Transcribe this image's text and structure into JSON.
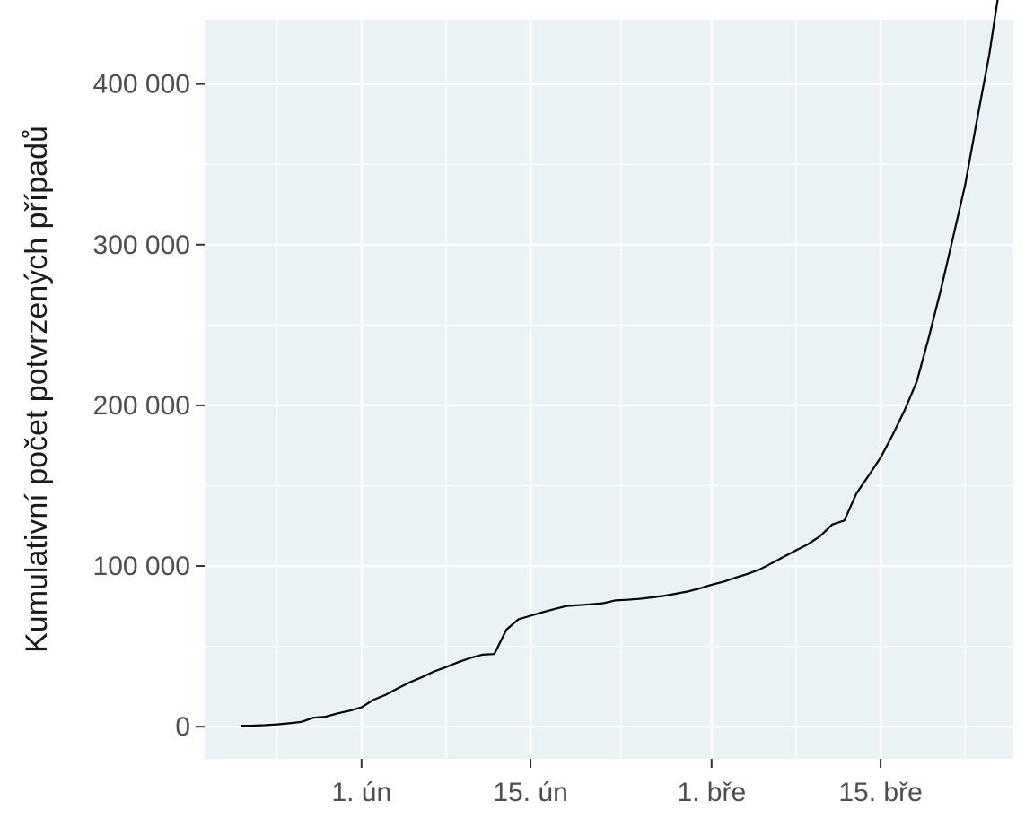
{
  "chart_data": {
    "type": "line",
    "title": "",
    "xlabel": "",
    "ylabel": "Kumulativní počet potvrzených případů",
    "background_color": "#ebf2f5",
    "grid_color": "#ffffff",
    "line_color": "#000000",
    "grid": true,
    "legend": "none",
    "xlim": [
      "2020-01-19",
      "2020-03-26"
    ],
    "ylim": [
      -20000,
      440000
    ],
    "x_ticks": [
      {
        "date": "2020-02-01",
        "label": "1. ún"
      },
      {
        "date": "2020-02-15",
        "label": "15. ún"
      },
      {
        "date": "2020-03-01",
        "label": "1. bře"
      },
      {
        "date": "2020-03-15",
        "label": "15. bře"
      }
    ],
    "y_ticks": [
      {
        "value": 0,
        "label": "0"
      },
      {
        "value": 100000,
        "label": "100 000"
      },
      {
        "value": 200000,
        "label": "200 000"
      },
      {
        "value": 300000,
        "label": "300 000"
      },
      {
        "value": 400000,
        "label": "400 000"
      }
    ],
    "series": [
      {
        "x": [
          "2020-01-22",
          "2020-01-23",
          "2020-01-24",
          "2020-01-25",
          "2020-01-26",
          "2020-01-27",
          "2020-01-28",
          "2020-01-29",
          "2020-01-30",
          "2020-01-31",
          "2020-02-01",
          "2020-02-02",
          "2020-02-03",
          "2020-02-04",
          "2020-02-05",
          "2020-02-06",
          "2020-02-07",
          "2020-02-08",
          "2020-02-09",
          "2020-02-10",
          "2020-02-11",
          "2020-02-12",
          "2020-02-13",
          "2020-02-14",
          "2020-02-15",
          "2020-02-16",
          "2020-02-17",
          "2020-02-18",
          "2020-02-19",
          "2020-02-20",
          "2020-02-21",
          "2020-02-22",
          "2020-02-23",
          "2020-02-24",
          "2020-02-25",
          "2020-02-26",
          "2020-02-27",
          "2020-02-28",
          "2020-02-29",
          "2020-03-01",
          "2020-03-02",
          "2020-03-03",
          "2020-03-04",
          "2020-03-05",
          "2020-03-06",
          "2020-03-07",
          "2020-03-08",
          "2020-03-09",
          "2020-03-10",
          "2020-03-11",
          "2020-03-12",
          "2020-03-13",
          "2020-03-14",
          "2020-03-15",
          "2020-03-16",
          "2020-03-17",
          "2020-03-18",
          "2020-03-19",
          "2020-03-20",
          "2020-03-21",
          "2020-03-22",
          "2020-03-23",
          "2020-03-24",
          "2020-03-25"
        ],
        "values": [
          555,
          654,
          941,
          1434,
          2118,
          2927,
          5578,
          6166,
          8234,
          9927,
          12038,
          16787,
          19887,
          23898,
          27643,
          30802,
          34395,
          37120,
          40150,
          42762,
          44802,
          45221,
          60368,
          66885,
          69030,
          71224,
          73258,
          75136,
          75639,
          76197,
          76819,
          78572,
          78958,
          79561,
          80406,
          81388,
          82746,
          84112,
          86011,
          88369,
          90306,
          92840,
          95120,
          97886,
          101801,
          105847,
          109821,
          113590,
          118620,
          125875,
          128352,
          145205,
          156101,
          167454,
          181574,
          197102,
          214821,
          242500,
          272166,
          304528,
          336953,
          378235,
          418045,
          467653
        ]
      }
    ]
  }
}
